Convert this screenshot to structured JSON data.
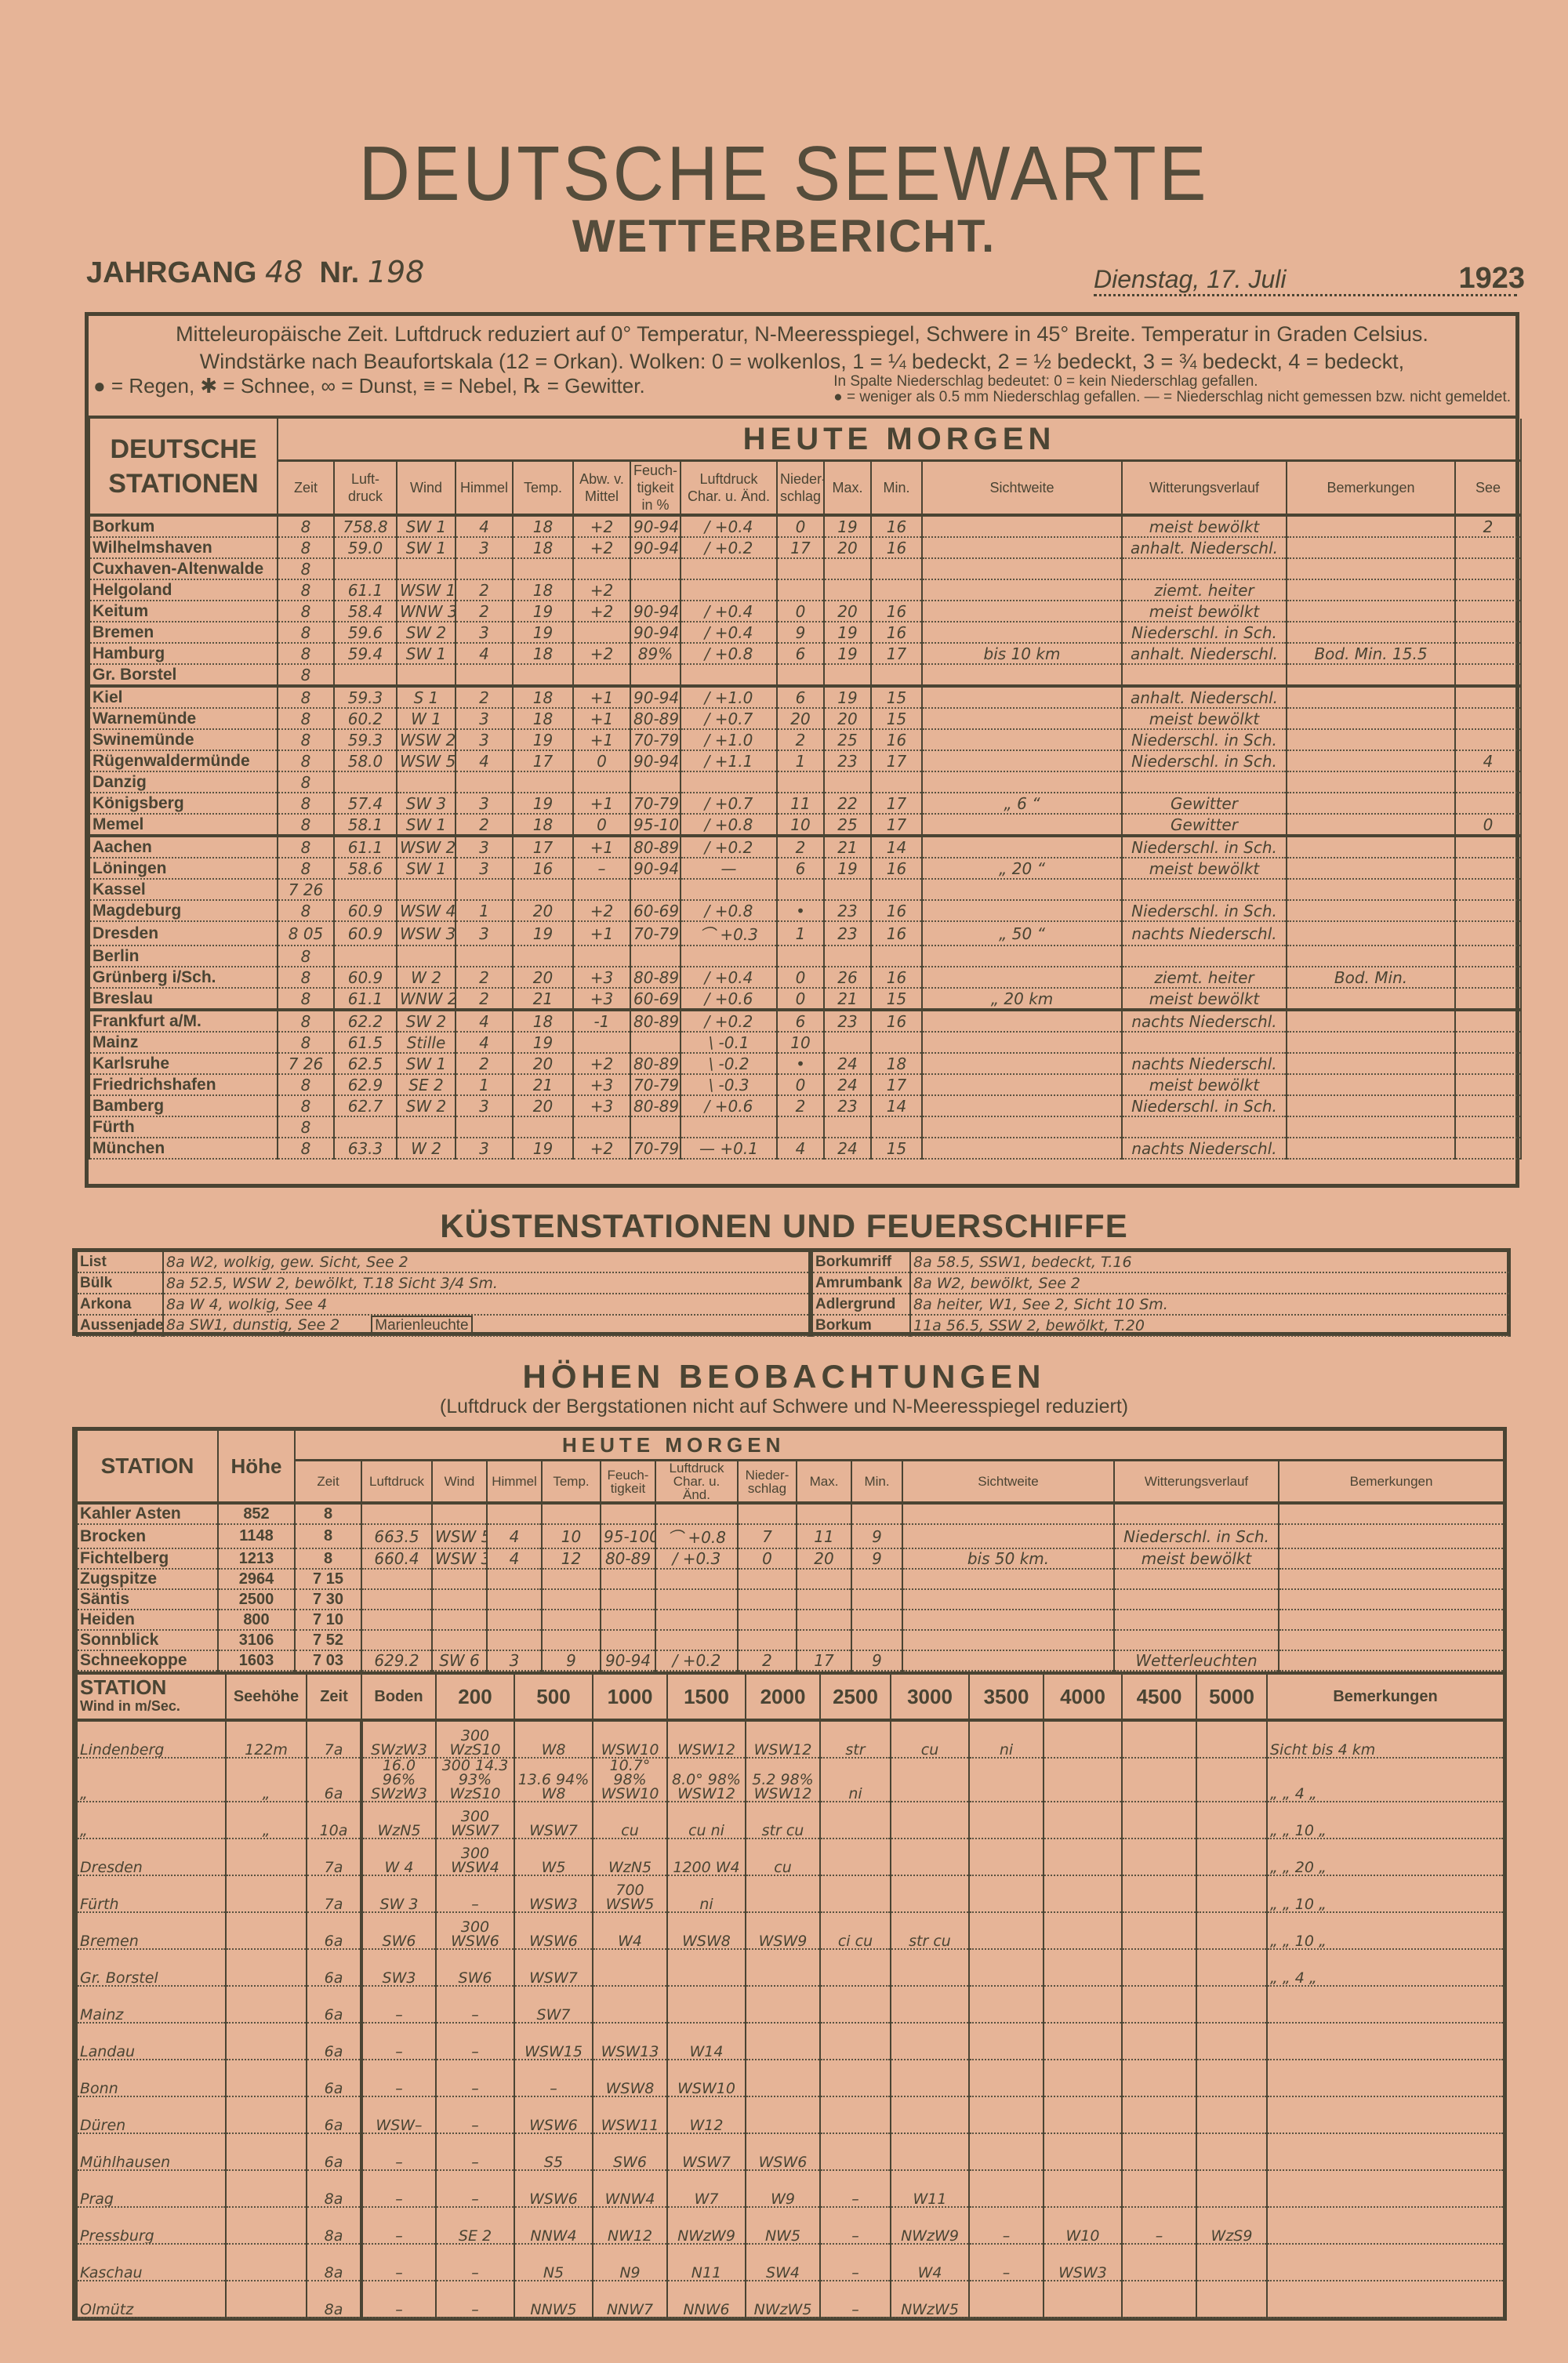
{
  "header": {
    "title": "DEUTSCHE SEEWARTE",
    "subtitle": "WETTERBERICHT.",
    "jahrgang_label": "JAHRGANG",
    "jahrgang": "48",
    "nr_label": "Nr.",
    "nr": "198",
    "date": "Dienstag, 17. Juli",
    "year": "1923"
  },
  "legend": {
    "line1": "Mitteleuropäische Zeit. Luftdruck reduziert auf 0° Temperatur, N-Meeresspiegel, Schwere in 45° Breite. Temperatur in Graden Celsius.",
    "line2": "Windstärke nach Beaufortskala (12 = Orkan). Wolken: 0 = wolkenlos, 1 = ¼ bedeckt, 2 = ½ bedeckt, 3 = ¾ bedeckt, 4 = bedeckt,",
    "line3a": "● = Regen, ✱ = Schnee, ∞ = Dunst, ≡ = Nebel, ℞ = Gewitter.",
    "line3b": "In Spalte Niederschlag bedeutet: 0 = kein Niederschlag gefallen.",
    "line3c": "● = weniger als 0.5 mm Niederschlag gefallen. — = Niederschlag nicht gemessen bzw. nicht gemeldet."
  },
  "main": {
    "stations_header": "DEUTSCHE STATIONEN",
    "heute_morgen": "HEUTE   MORGEN",
    "columns": [
      "Zeit",
      "Luft-druck",
      "Wind",
      "Himmel",
      "Temp.",
      "Abw. v. Mittel",
      "Feuch-tigkeit in %",
      "Luftdruck Char. u. Änd.",
      "Nieder-schlag",
      "Max.",
      "Min.",
      "Sichtweite",
      "Witterungsverlauf",
      "Bemerkungen",
      "See"
    ],
    "rows": [
      [
        "Borkum",
        "8",
        "758.8",
        "SW 1",
        "4",
        "18",
        "+2",
        "90-94",
        "/ +0.4",
        "0",
        "19",
        "16",
        "",
        "meist bewölkt",
        "",
        "2"
      ],
      [
        "Wilhelmshaven",
        "8",
        "59.0",
        "SW 1",
        "3",
        "18",
        "+2",
        "90-94",
        "/ +0.2",
        "17",
        "20",
        "16",
        "",
        "anhalt. Niederschl.",
        "",
        ""
      ],
      [
        "Cuxhaven-Altenwalde",
        "8",
        "",
        "",
        "",
        "",
        "",
        "",
        "",
        "",
        "",
        "",
        "",
        "",
        "",
        ""
      ],
      [
        "Helgoland",
        "8",
        "61.1",
        "WSW 1",
        "2",
        "18",
        "+2",
        "",
        "",
        "",
        "",
        "",
        "",
        "ziemt. heiter",
        "",
        ""
      ],
      [
        "Keitum",
        "8",
        "58.4",
        "WNW 3",
        "2",
        "19",
        "+2",
        "90-94",
        "/ +0.4",
        "0",
        "20",
        "16",
        "",
        "meist bewölkt",
        "",
        ""
      ],
      [
        "Bremen",
        "8",
        "59.6",
        "SW 2",
        "3",
        "19",
        "",
        "90-94",
        "/ +0.4",
        "9",
        "19",
        "16",
        "",
        "Niederschl. in Sch.",
        "",
        ""
      ],
      [
        "Hamburg",
        "8",
        "59.4",
        "SW 1",
        "4",
        "18",
        "+2",
        "89%",
        "/ +0.8",
        "6",
        "19",
        "17",
        "bis 10 km",
        "anhalt. Niederschl.",
        "Bod. Min. 15.5",
        ""
      ],
      [
        "Gr. Borstel",
        "8",
        "",
        "",
        "",
        "",
        "",
        "",
        "",
        "",
        "",
        "",
        "",
        "",
        "",
        ""
      ],
      [
        "Kiel",
        "8",
        "59.3",
        "S 1",
        "2",
        "18",
        "+1",
        "90-94",
        "/ +1.0",
        "6",
        "19",
        "15",
        "",
        "anhalt. Niederschl.",
        "",
        ""
      ],
      [
        "Warnemünde",
        "8",
        "60.2",
        "W 1",
        "3",
        "18",
        "+1",
        "80-89",
        "/ +0.7",
        "20",
        "20",
        "15",
        "",
        "meist bewölkt",
        "",
        ""
      ],
      [
        "Swinemünde",
        "8",
        "59.3",
        "WSW 2",
        "3",
        "19",
        "+1",
        "70-79",
        "/ +1.0",
        "2",
        "25",
        "16",
        "",
        "Niederschl. in Sch.",
        "",
        ""
      ],
      [
        "Rügenwaldermünde",
        "8",
        "58.0",
        "WSW 5",
        "4",
        "17",
        "0",
        "90-94",
        "/ +1.1",
        "1",
        "23",
        "17",
        "",
        "Niederschl. in Sch.",
        "",
        "4"
      ],
      [
        "Danzig",
        "8",
        "",
        "",
        "",
        "",
        "",
        "",
        "",
        "",
        "",
        "",
        "",
        "",
        "",
        ""
      ],
      [
        "Königsberg",
        "8",
        "57.4",
        "SW 3",
        "3",
        "19",
        "+1",
        "70-79",
        "/ +0.7",
        "11",
        "22",
        "17",
        "„ 6 “",
        "Gewitter",
        "",
        ""
      ],
      [
        "Memel",
        "8",
        "58.1",
        "SW 1",
        "2",
        "18",
        "0",
        "95-100",
        "/ +0.8",
        "10",
        "25",
        "17",
        "",
        "Gewitter",
        "",
        "0"
      ],
      [
        "Aachen",
        "8",
        "61.1",
        "WSW 2",
        "3",
        "17",
        "+1",
        "80-89",
        "/ +0.2",
        "2",
        "21",
        "14",
        "",
        "Niederschl. in Sch.",
        "",
        ""
      ],
      [
        "Löningen",
        "8",
        "58.6",
        "SW 1",
        "3",
        "16",
        "–",
        "90-94",
        "—",
        "6",
        "19",
        "16",
        "„ 20 “",
        "meist bewölkt",
        "",
        ""
      ],
      [
        "Kassel",
        "7 26",
        "",
        "",
        "",
        "",
        "",
        "",
        "",
        "",
        "",
        "",
        "",
        "",
        "",
        ""
      ],
      [
        "Magdeburg",
        "8",
        "60.9",
        "WSW 4",
        "1",
        "20",
        "+2",
        "60-69",
        "/ +0.8",
        "•",
        "23",
        "16",
        "",
        "Niederschl. in Sch.",
        "",
        ""
      ],
      [
        "Dresden",
        "8 05",
        "60.9",
        "WSW 3",
        "3",
        "19",
        "+1",
        "70-79",
        "⌒ +0.3",
        "1",
        "23",
        "16",
        "„ 50 “",
        "nachts Niederschl.",
        "",
        ""
      ],
      [
        "Berlin",
        "8",
        "",
        "",
        "",
        "",
        "",
        "",
        "",
        "",
        "",
        "",
        "",
        "",
        "",
        ""
      ],
      [
        "Grünberg i/Sch.",
        "8",
        "60.9",
        "W 2",
        "2",
        "20",
        "+3",
        "80-89",
        "/ +0.4",
        "0",
        "26",
        "16",
        "",
        "ziemt. heiter",
        "Bod. Min.",
        ""
      ],
      [
        "Breslau",
        "8",
        "61.1",
        "WNW 2",
        "2",
        "21",
        "+3",
        "60-69",
        "/ +0.6",
        "0",
        "21",
        "15",
        "„ 20 km",
        "meist bewölkt",
        "",
        ""
      ],
      [
        "Frankfurt a/M.",
        "8",
        "62.2",
        "SW 2",
        "4",
        "18",
        "-1",
        "80-89",
        "/ +0.2",
        "6",
        "23",
        "16",
        "",
        "nachts Niederschl.",
        "",
        ""
      ],
      [
        "Mainz",
        "8",
        "61.5",
        "Stille",
        "4",
        "19",
        "",
        "",
        "\\ -0.1",
        "10",
        "",
        "",
        "",
        "",
        "",
        ""
      ],
      [
        "Karlsruhe",
        "7 26",
        "62.5",
        "SW 1",
        "2",
        "20",
        "+2",
        "80-89",
        "\\ -0.2",
        "•",
        "24",
        "18",
        "",
        "nachts Niederschl.",
        "",
        ""
      ],
      [
        "Friedrichshafen",
        "8",
        "62.9",
        "SE 2",
        "1",
        "21",
        "+3",
        "70-79",
        "\\ -0.3",
        "0",
        "24",
        "17",
        "",
        "meist bewölkt",
        "",
        ""
      ],
      [
        "Bamberg",
        "8",
        "62.7",
        "SW 2",
        "3",
        "20",
        "+3",
        "80-89",
        "/ +0.6",
        "2",
        "23",
        "14",
        "",
        "Niederschl. in Sch.",
        "",
        ""
      ],
      [
        "Fürth",
        "8",
        "",
        "",
        "",
        "",
        "",
        "",
        "",
        "",
        "",
        "",
        "",
        "",
        "",
        ""
      ],
      [
        "München",
        "8",
        "63.3",
        "W 2",
        "3",
        "19",
        "+2",
        "70-79",
        "— +0.1",
        "4",
        "24",
        "15",
        "",
        "nachts Niederschl.",
        "",
        ""
      ]
    ]
  },
  "kuesten": {
    "title": "KÜSTENSTATIONEN UND FEUERSCHIFFE",
    "left": [
      [
        "List",
        "8a W2, wolkig, gew. Sicht, See 2"
      ],
      [
        "Bülk",
        "8a 52.5, WSW 2, bewölkt, T.18  Sicht 3/4 Sm."
      ],
      [
        "Arkona",
        "8a W 4, wolkig, See 4"
      ],
      [
        "Aussenjade",
        "8a SW1, dunstig, See 2"
      ]
    ],
    "marienleuchte": "Marienleuchte",
    "right": [
      [
        "Borkumriff",
        "8a 58.5, SSW1, bedeckt, T.16"
      ],
      [
        "Amrumbank",
        "8a W2, bewölkt, See 2"
      ],
      [
        "Adlergrund",
        "8a heiter, W1, See 2, Sicht 10 Sm."
      ],
      [
        "Borkum",
        "11a 56.5, SSW 2, bewölkt, T.20"
      ]
    ]
  },
  "hoehen": {
    "title": "HÖHEN   BEOBACHTUNGEN",
    "subtitle": "(Luftdruck der Bergstationen nicht auf Schwere und N-Meeresspiegel reduziert)",
    "heute_morgen": "HEUTE   MORGEN",
    "columns": [
      "STATION",
      "Höhe",
      "Zeit",
      "Luftdruck",
      "Wind",
      "Himmel",
      "Temp.",
      "Feuch-tigkeit",
      "Luftdruck Char. u. Änd.",
      "Nieder-schlag",
      "Max.",
      "Min.",
      "Sichtweite",
      "Witterungsverlauf",
      "Bemerkungen"
    ],
    "rows": [
      [
        "Kahler Asten",
        "852",
        "8",
        "",
        "",
        "",
        "",
        "",
        "",
        "",
        "",
        "",
        "",
        "",
        ""
      ],
      [
        "Brocken",
        "1148",
        "8",
        "663.5",
        "WSW 5",
        "4",
        "10",
        "95-100",
        "⌒ +0.8",
        "7",
        "11",
        "9",
        "",
        "Niederschl. in Sch.",
        ""
      ],
      [
        "Fichtelberg",
        "1213",
        "8",
        "660.4",
        "WSW 3",
        "4",
        "12",
        "80-89",
        "/ +0.3",
        "0",
        "20",
        "9",
        "bis 50 km.",
        "meist bewölkt",
        ""
      ],
      [
        "Zugspitze",
        "2964",
        "7 15",
        "",
        "",
        "",
        "",
        "",
        "",
        "",
        "",
        "",
        "",
        "",
        ""
      ],
      [
        "Säntis",
        "2500",
        "7 30",
        "",
        "",
        "",
        "",
        "",
        "",
        "",
        "",
        "",
        "",
        "",
        ""
      ],
      [
        "Heiden",
        "800",
        "7 10",
        "",
        "",
        "",
        "",
        "",
        "",
        "",
        "",
        "",
        "",
        "",
        ""
      ],
      [
        "Sonnblick",
        "3106",
        "7 52",
        "",
        "",
        "",
        "",
        "",
        "",
        "",
        "",
        "",
        "",
        "",
        ""
      ],
      [
        "Schneekoppe",
        "1603",
        "7 03",
        "629.2",
        "SW 6",
        "3",
        "9",
        "90-94",
        "/ +0.2",
        "2",
        "17",
        "9",
        "",
        "Wetterleuchten",
        ""
      ]
    ]
  },
  "pilot": {
    "station_header": "STATION",
    "station_sub": "Wind in m/Sec.",
    "columns": [
      "Seehöhe",
      "Zeit",
      "Boden",
      "200",
      "500",
      "1000",
      "1500",
      "2000",
      "2500",
      "3000",
      "3500",
      "4000",
      "4500",
      "5000",
      "Bemerkungen"
    ],
    "rows": [
      [
        "Lindenberg",
        "122m",
        "7a",
        "SWzW3",
        "300 WzS10",
        "W8",
        "WSW10",
        "WSW12",
        "WSW12",
        "str",
        "cu",
        "ni",
        "",
        "",
        "",
        "Sicht bis 4 km"
      ],
      [
        "„",
        "„",
        "6a",
        "16.0 96% SWzW3",
        "300 14.3 93% WzS10",
        "13.6 94% W8",
        "10.7° 98% WSW10",
        "8.0° 98% WSW12",
        "5.2 98% WSW12",
        "ni",
        "",
        "",
        "",
        "",
        "",
        "„  „  4 „"
      ],
      [
        "„",
        "„",
        "10a",
        "WzN5",
        "300 WSW7",
        "WSW7",
        "cu",
        "cu ni",
        "str cu",
        "",
        "",
        "",
        "",
        "",
        "",
        "„  „  10 „"
      ],
      [
        "Dresden",
        "",
        "7a",
        "W 4",
        "300 WSW4",
        "W5",
        "WzN5",
        "1200 W4",
        "cu",
        "",
        "",
        "",
        "",
        "",
        "",
        "„  „  20 „"
      ],
      [
        "Fürth",
        "",
        "7a",
        "SW 3",
        "–",
        "WSW3",
        "700 WSW5",
        "ni",
        "",
        "",
        "",
        "",
        "",
        "",
        "",
        "„  „  10 „"
      ],
      [
        "Bremen",
        "",
        "6a",
        "SW6",
        "300 WSW6",
        "WSW6",
        "W4",
        "WSW8",
        "WSW9",
        "ci cu",
        "str cu",
        "",
        "",
        "",
        "",
        "„  „  10 „"
      ],
      [
        "Gr. Borstel",
        "",
        "6a",
        "SW3",
        "SW6",
        "WSW7",
        "",
        "",
        "",
        "",
        "",
        "",
        "",
        "",
        "",
        "„  „  4 „"
      ],
      [
        "Mainz",
        "",
        "6a",
        "–",
        "–",
        "SW7",
        "",
        "",
        "",
        "",
        "",
        "",
        "",
        "",
        "",
        ""
      ],
      [
        "Landau",
        "",
        "6a",
        "–",
        "–",
        "WSW15",
        "WSW13",
        "W14",
        "",
        "",
        "",
        "",
        "",
        "",
        "",
        ""
      ],
      [
        "Bonn",
        "",
        "6a",
        "–",
        "–",
        "–",
        "WSW8",
        "WSW10",
        "",
        "",
        "",
        "",
        "",
        "",
        "",
        ""
      ],
      [
        "Düren",
        "",
        "6a",
        "WSW–",
        "–",
        "WSW6",
        "WSW11",
        "W12",
        "",
        "",
        "",
        "",
        "",
        "",
        "",
        ""
      ],
      [
        "Mühlhausen",
        "",
        "6a",
        "–",
        "–",
        "S5",
        "SW6",
        "WSW7",
        "WSW6",
        "",
        "",
        "",
        "",
        "",
        "",
        ""
      ],
      [
        "Prag",
        "",
        "8a",
        "–",
        "–",
        "WSW6",
        "WNW4",
        "W7",
        "W9",
        "–",
        "W11",
        "",
        "",
        "",
        "",
        ""
      ],
      [
        "Pressburg",
        "",
        "8a",
        "–",
        "SE 2",
        "NNW4",
        "NW12",
        "NWzW9",
        "NW5",
        "–",
        "NWzW9",
        "–",
        "W10",
        "–",
        "WzS9",
        ""
      ],
      [
        "Kaschau",
        "",
        "8a",
        "–",
        "–",
        "N5",
        "N9",
        "N11",
        "SW4",
        "–",
        "W4",
        "–",
        "WSW3",
        "",
        "",
        ""
      ],
      [
        "Olmütz",
        "",
        "8a",
        "–",
        "–",
        "NNW5",
        "NNW7",
        "NNW6",
        "NWzW5",
        "–",
        "NWzW5",
        "",
        "",
        "",
        "",
        ""
      ]
    ]
  },
  "colors": {
    "paper": "#e6b497",
    "ink": "#4a4433"
  }
}
